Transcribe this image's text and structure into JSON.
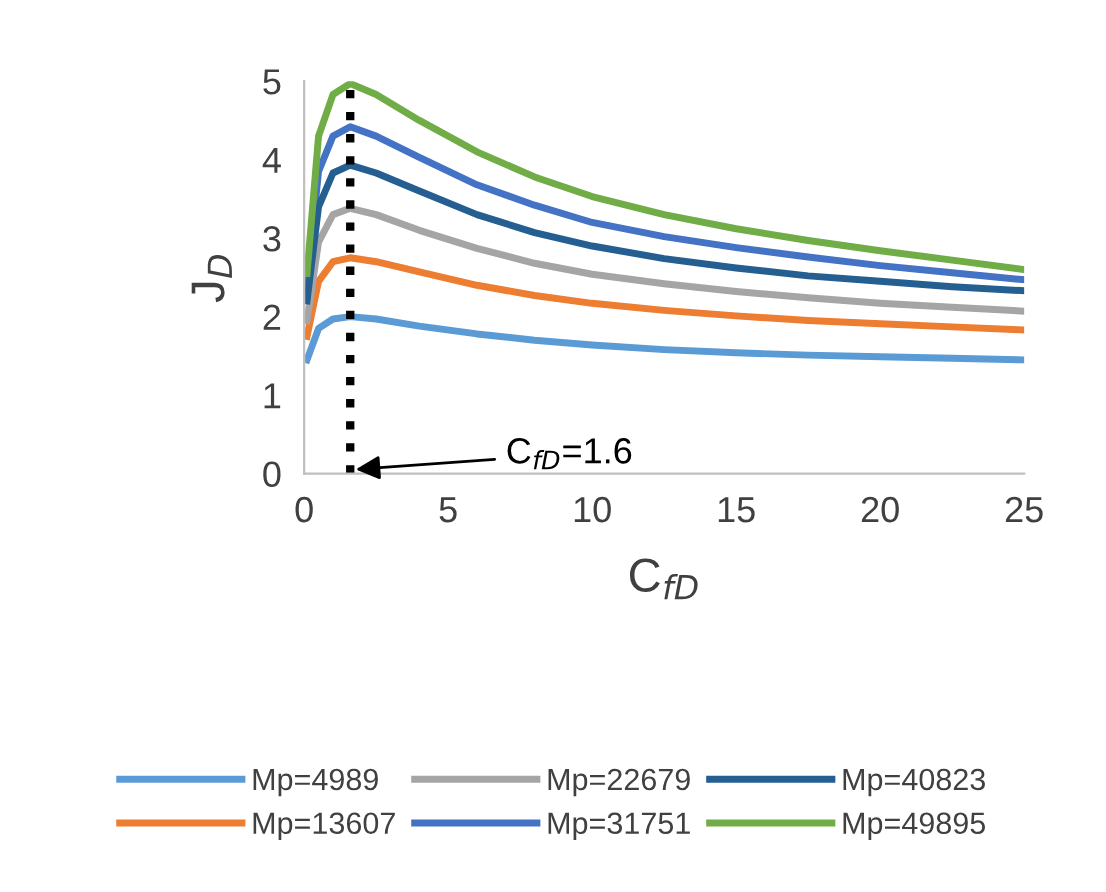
{
  "chart_data": {
    "type": "line",
    "xlabel": "C$_{fD}$",
    "ylabel": "J$_{D}$",
    "x": [
      0.1,
      0.5,
      1,
      1.6,
      2.5,
      4,
      6,
      8,
      10,
      12.5,
      15,
      17.5,
      20,
      22.5,
      25
    ],
    "series": [
      {
        "name": "Mp=4989",
        "color": "#5b9bd5",
        "values": [
          1.45,
          1.85,
          1.97,
          2.0,
          1.97,
          1.88,
          1.78,
          1.7,
          1.64,
          1.58,
          1.54,
          1.51,
          1.49,
          1.47,
          1.45
        ]
      },
      {
        "name": "Mp=13607",
        "color": "#ed7d31",
        "values": [
          1.75,
          2.45,
          2.7,
          2.75,
          2.7,
          2.57,
          2.4,
          2.27,
          2.17,
          2.08,
          2.01,
          1.95,
          1.91,
          1.87,
          1.83
        ]
      },
      {
        "name": "Mp=22679",
        "color": "#a5a5a5",
        "values": [
          1.95,
          2.95,
          3.3,
          3.38,
          3.3,
          3.1,
          2.87,
          2.68,
          2.54,
          2.42,
          2.32,
          2.24,
          2.17,
          2.12,
          2.07
        ]
      },
      {
        "name": "Mp=31751",
        "color": "#4472c4",
        "values": [
          2.4,
          3.85,
          4.3,
          4.42,
          4.3,
          4.03,
          3.68,
          3.42,
          3.2,
          3.02,
          2.88,
          2.76,
          2.65,
          2.56,
          2.47
        ]
      },
      {
        "name": "Mp=40823",
        "color": "#255e91",
        "values": [
          2.2,
          3.4,
          3.83,
          3.93,
          3.83,
          3.6,
          3.3,
          3.07,
          2.9,
          2.74,
          2.62,
          2.52,
          2.45,
          2.38,
          2.33
        ]
      },
      {
        "name": "Mp=49895",
        "color": "#70ad47",
        "values": [
          2.55,
          4.3,
          4.83,
          4.97,
          4.83,
          4.5,
          4.1,
          3.78,
          3.53,
          3.3,
          3.12,
          2.97,
          2.84,
          2.72,
          2.6
        ]
      }
    ],
    "xlim": [
      0,
      25
    ],
    "xticks": [
      0,
      5,
      10,
      15,
      20,
      25
    ],
    "ylim": [
      0,
      5
    ],
    "yticks": [
      0,
      1,
      2,
      3,
      4,
      5
    ],
    "ref_lines": [
      {
        "axis": "x",
        "value": 1.6,
        "label": "C$_{fD}$=1.6",
        "color": "#000000",
        "line_style": "dotted"
      }
    ],
    "grid": false,
    "legend": "bottom",
    "marker": "none",
    "line_style": "solid"
  }
}
